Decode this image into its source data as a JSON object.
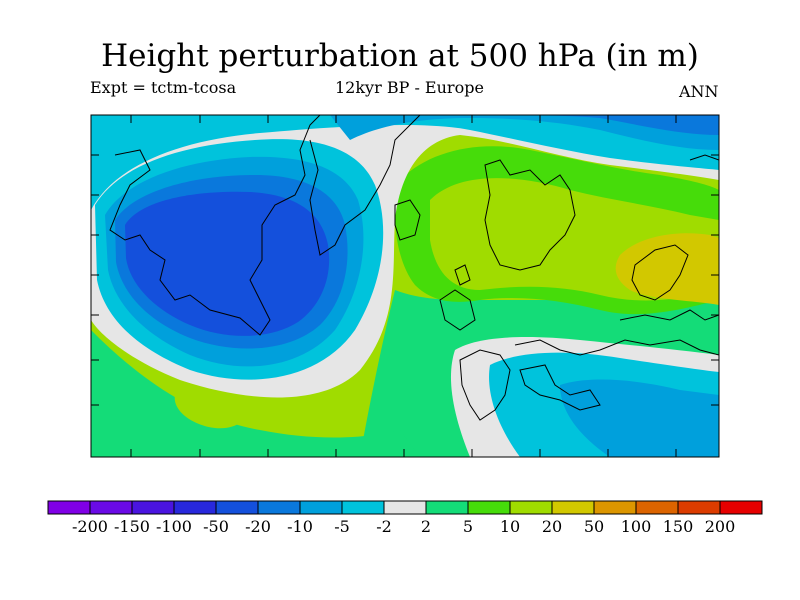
{
  "title": "Height perturbation at 500 hPa (in m)",
  "subtitle_left": "Expt = tctm-tcosa",
  "subtitle_center": "12kyr BP - Europe",
  "subtitle_right": "ANN",
  "colorbar": {
    "levels": [
      "-200",
      "-150",
      "-100",
      "-50",
      "-20",
      "-10",
      "-5",
      "-2",
      "2",
      "5",
      "10",
      "20",
      "50",
      "100",
      "150",
      "200"
    ],
    "colors": [
      "#8000e6",
      "#6a0ae6",
      "#4a14e0",
      "#2828dc",
      "#1450dc",
      "#0a78dc",
      "#00a0dc",
      "#00c3dc",
      "#e6e6e6",
      "#14dc78",
      "#46dc0a",
      "#a0dc00",
      "#d2c800",
      "#dc9600",
      "#dc6400",
      "#dc3c00",
      "#e60000"
    ]
  },
  "map": {
    "region": "Europe",
    "field_colors": {
      "strong_negative": "#1450dc",
      "negative": "#0a78dc",
      "weak_negative": "#00a0dc",
      "slight_negative": "#00c3dc",
      "neutral": "#e6e6e6",
      "slight_positive": "#14dc78",
      "weak_positive": "#46dc0a",
      "positive": "#a0dc00",
      "strong_positive": "#d2c800"
    }
  }
}
